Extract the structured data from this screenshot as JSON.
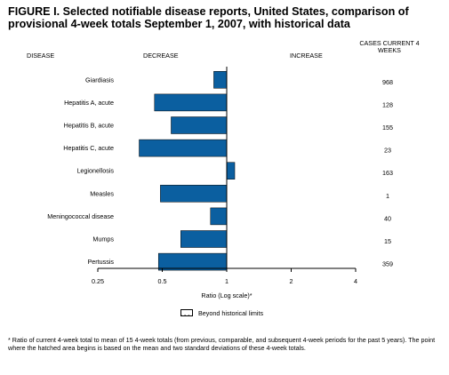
{
  "figure": {
    "title": "FIGURE I. Selected notifiable disease reports, United States, comparison of provisional 4-week totals September 1, 2007, with historical data",
    "col_disease": "DISEASE",
    "col_decrease": "DECREASE",
    "col_increase": "INCREASE",
    "col_cases": "CASES CURRENT 4 WEEKS",
    "legend_label": "Beyond historical limits",
    "footnote": "* Ratio of current 4-week total to mean of 15 4-week totals (from previous, comparable, and subsequent 4-week periods for the past 5 years). The point where the hatched area begins is based on the mean and two standard deviations of these 4-week totals."
  },
  "chart_data": {
    "type": "bar",
    "orientation": "horizontal",
    "xlabel": "Ratio (Log scale)*",
    "xscale": "log2",
    "xlim": [
      0.25,
      4
    ],
    "xticks": [
      "0.25",
      "0.5",
      "1",
      "2",
      "4"
    ],
    "baseline": 1,
    "bar_color": "#0b5fa0",
    "categories": [
      "Giardiasis",
      "Hepatitis A, acute",
      "Hepatitis B, acute",
      "Hepatitis C, acute",
      "Legionellosis",
      "Measles",
      "Meningococcal disease",
      "Mumps",
      "Pertussis"
    ],
    "values": [
      0.87,
      0.46,
      0.55,
      0.39,
      1.09,
      0.49,
      0.84,
      0.61,
      0.48
    ],
    "cases_current_4_weeks": [
      "968",
      "128",
      "155",
      "23",
      "163",
      "1",
      "40",
      "15",
      "359"
    ]
  }
}
